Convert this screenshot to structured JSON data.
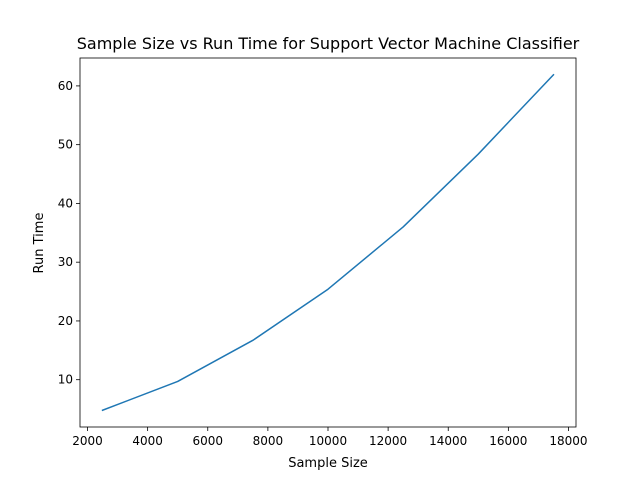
{
  "chart_data": {
    "type": "line",
    "title": "Sample Size vs Run Time for Support Vector Machine Classifier",
    "xlabel": "Sample Size",
    "ylabel": "Run Time",
    "xlim": [
      1750,
      18250
    ],
    "ylim": [
      1.95,
      64.75
    ],
    "xticks": [
      2000,
      4000,
      6000,
      8000,
      10000,
      12000,
      14000,
      16000,
      18000
    ],
    "yticks": [
      10,
      20,
      30,
      40,
      50,
      60
    ],
    "grid": false,
    "line_color": "#1f77b4",
    "series": [
      {
        "x": [
          2500,
          5000,
          7500,
          10000,
          12500,
          15000,
          17500
        ],
        "values": [
          4.8,
          9.7,
          16.7,
          25.4,
          36.0,
          48.4,
          61.9
        ]
      }
    ]
  }
}
